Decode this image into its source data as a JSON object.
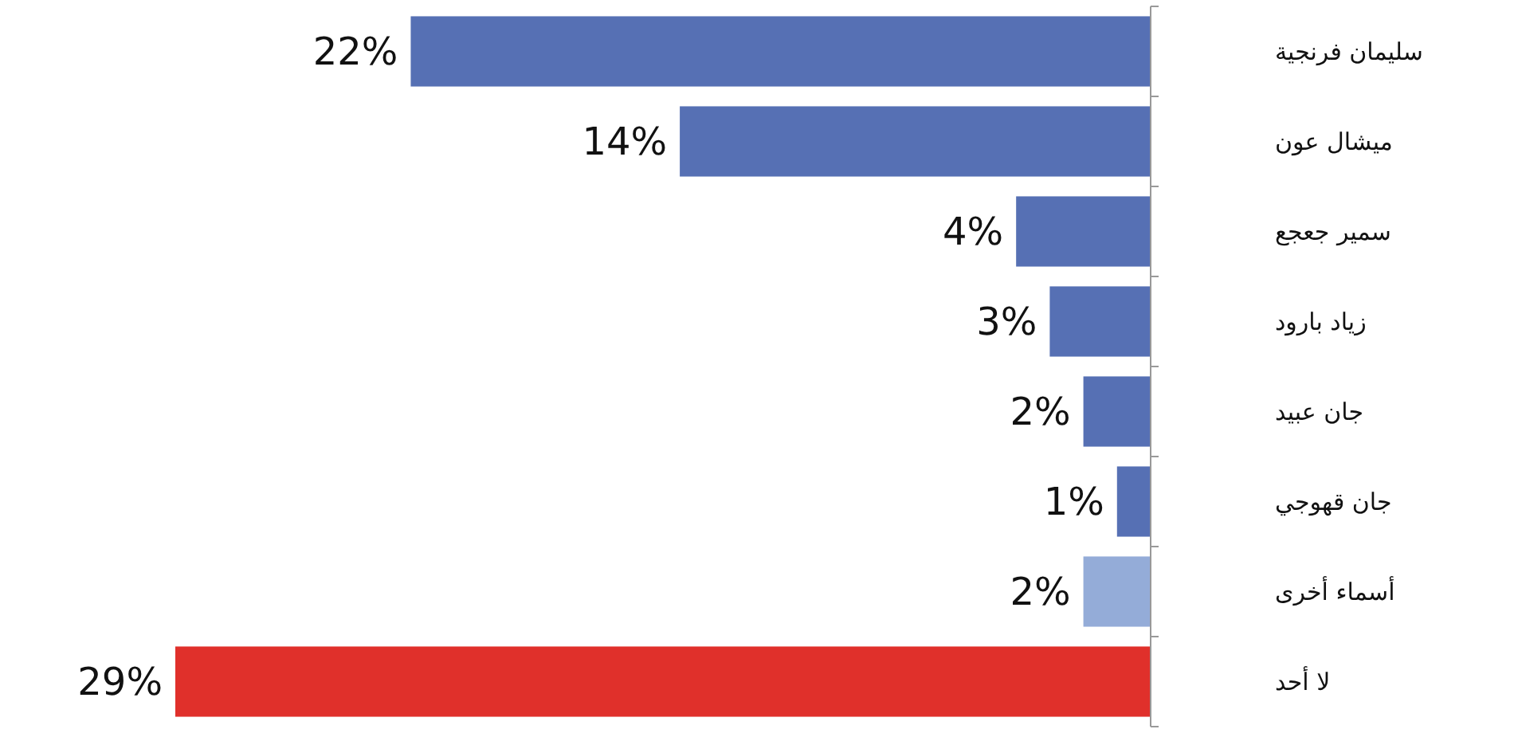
{
  "chart_data": {
    "type": "bar",
    "orientation": "horizontal",
    "categories": [
      "سليمان فرنجية",
      "ميشال عون",
      "سمير جعجع",
      "زياد بارود",
      "جان عبيد",
      "جان قهوجي",
      "أسماء أخرى",
      "لا أحد"
    ],
    "values": [
      22,
      14,
      4,
      3,
      2,
      1,
      2,
      29
    ],
    "colors": [
      "#5670b4",
      "#5670b4",
      "#5670b4",
      "#5670b4",
      "#5670b4",
      "#5670b4",
      "#94acd8",
      "#e0302b"
    ],
    "value_labels": [
      "22%",
      "14%",
      "4%",
      "3%",
      "2%",
      "1%",
      "2%",
      "29%"
    ]
  }
}
